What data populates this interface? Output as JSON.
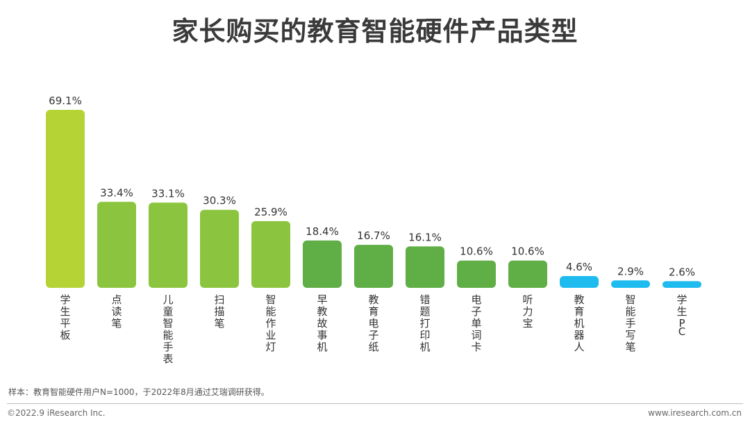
{
  "chart_data": {
    "type": "bar",
    "title": "家长购买的教育智能硬件产品类型",
    "categories": [
      "学生平板",
      "点读笔",
      "儿童智能手表",
      "扫描笔",
      "智能作业灯",
      "早教故事机",
      "教育电子纸",
      "错题打印机",
      "电子单词卡",
      "听力宝",
      "教育机器人",
      "智能手写笔",
      "学生PC"
    ],
    "values": [
      69.1,
      33.4,
      33.1,
      30.3,
      25.9,
      18.4,
      16.7,
      16.1,
      10.6,
      10.6,
      4.6,
      2.9,
      2.6
    ],
    "value_labels": [
      "69.1%",
      "33.4%",
      "33.1%",
      "30.3%",
      "25.9%",
      "18.4%",
      "16.7%",
      "16.1%",
      "10.6%",
      "10.6%",
      "4.6%",
      "2.9%",
      "2.6%"
    ],
    "unit": "%",
    "ylim": [
      0,
      69.1
    ],
    "grid": false,
    "legend": "none",
    "colors": [
      "#b5d334",
      "#8bc53f",
      "#8bc53f",
      "#8bc53f",
      "#8bc53f",
      "#5fae46",
      "#5fae46",
      "#5fae46",
      "#5fae46",
      "#5fae46",
      "#1ebbef",
      "#1ebbef",
      "#1ebbef"
    ]
  },
  "footer": {
    "note": "样本：教育智能硬件用户N=1000，于2022年8月通过艾瑞调研获得。",
    "copyright": "©2022.9 iResearch Inc.",
    "website": "www.iresearch.com.cn"
  }
}
